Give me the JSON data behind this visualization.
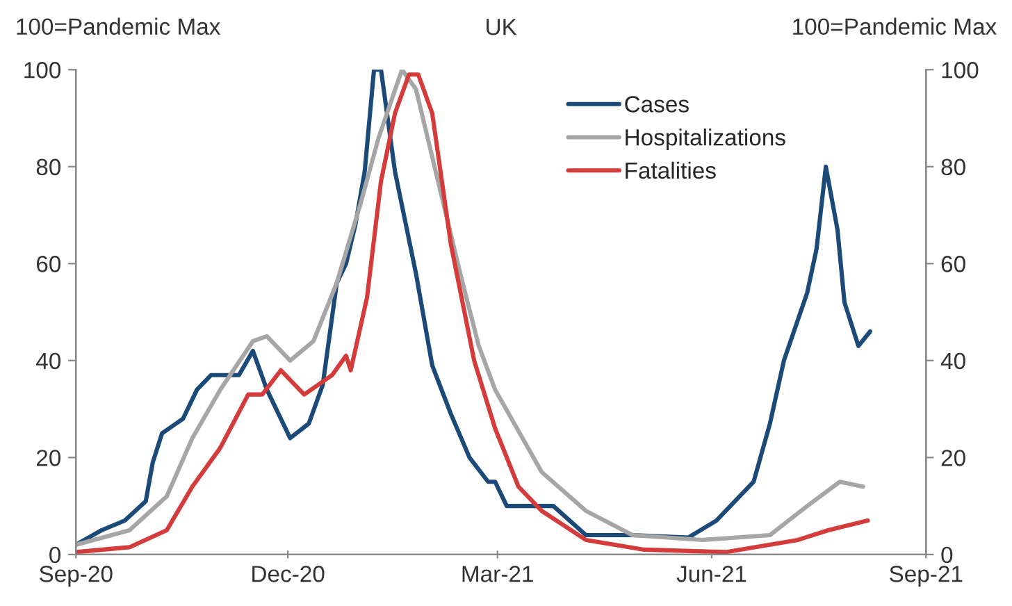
{
  "chart_data": {
    "type": "line",
    "title": "UK",
    "ylabel": "100=Pandemic Max",
    "y2label": "100=Pandemic Max",
    "xlim": [
      "2020-09-01",
      "2021-09-01"
    ],
    "xticks": [
      {
        "value": "2020-09-01",
        "label": "Sep-20"
      },
      {
        "value": "2020-12-01",
        "label": "Dec-20"
      },
      {
        "value": "2021-03-01",
        "label": "Mar-21"
      },
      {
        "value": "2021-06-01",
        "label": "Jun-21"
      },
      {
        "value": "2021-09-01",
        "label": "Sep-21"
      }
    ],
    "ylim": [
      0,
      100
    ],
    "yticks": [
      0,
      20,
      40,
      60,
      80,
      100
    ],
    "y2lim": [
      0,
      100
    ],
    "y2ticks": [
      0,
      20,
      40,
      60,
      80,
      100
    ],
    "grid": false,
    "legend": "top right",
    "marker": "none",
    "line_style": "solid",
    "series": [
      {
        "name": "Cases",
        "color": "#1b4a78",
        "x": [
          "2020-09-01",
          "2020-09-12",
          "2020-09-22",
          "2020-10-01",
          "2020-10-04",
          "2020-10-08",
          "2020-10-17",
          "2020-10-23",
          "2020-10-29",
          "2020-11-10",
          "2020-11-16",
          "2020-11-22",
          "2020-12-02",
          "2020-12-10",
          "2020-12-16",
          "2020-12-22",
          "2020-12-26",
          "2020-12-30",
          "2021-01-03",
          "2021-01-07",
          "2021-01-10",
          "2021-01-16",
          "2021-01-25",
          "2021-02-01",
          "2021-02-09",
          "2021-02-17",
          "2021-02-25",
          "2021-02-28",
          "2021-03-05",
          "2021-03-16",
          "2021-03-25",
          "2021-04-08",
          "2021-04-28",
          "2021-05-22",
          "2021-06-03",
          "2021-06-19",
          "2021-06-26",
          "2021-07-02",
          "2021-07-12",
          "2021-07-16",
          "2021-07-20",
          "2021-07-25",
          "2021-07-28",
          "2021-08-03",
          "2021-08-08"
        ],
        "values": [
          2,
          5,
          7,
          11,
          19,
          25,
          28,
          34,
          37,
          37,
          42,
          34,
          24,
          27,
          35,
          56,
          60,
          68,
          79,
          100,
          100,
          79,
          58,
          39,
          29,
          20,
          15,
          15,
          10,
          10,
          10,
          4,
          4,
          3.5,
          7,
          15,
          27,
          40,
          54,
          63,
          80,
          67,
          52,
          43,
          46
        ]
      },
      {
        "name": "Hospitalizations",
        "color": "#a6a6a6",
        "x": [
          "2020-09-01",
          "2020-09-24",
          "2020-10-10",
          "2020-10-21",
          "2020-11-02",
          "2020-11-16",
          "2020-11-22",
          "2020-12-02",
          "2020-12-12",
          "2020-12-22",
          "2021-01-01",
          "2021-01-09",
          "2021-01-19",
          "2021-01-25",
          "2021-02-01",
          "2021-02-13",
          "2021-02-21",
          "2021-02-28",
          "2021-03-20",
          "2021-04-08",
          "2021-04-28",
          "2021-05-28",
          "2021-06-26",
          "2021-07-12",
          "2021-07-26",
          "2021-08-05"
        ],
        "values": [
          2,
          5,
          12,
          24,
          34,
          44,
          45,
          40,
          44,
          56,
          72,
          86,
          100,
          96,
          82,
          58,
          43,
          34,
          17,
          9,
          4,
          3,
          4,
          10,
          15,
          14
        ]
      },
      {
        "name": "Fatalities",
        "color": "#d43c3c",
        "x": [
          "2020-09-01",
          "2020-09-24",
          "2020-10-10",
          "2020-10-21",
          "2020-11-02",
          "2020-11-14",
          "2020-11-20",
          "2020-11-28",
          "2020-12-08",
          "2020-12-20",
          "2020-12-26",
          "2020-12-28",
          "2021-01-04",
          "2021-01-10",
          "2021-01-16",
          "2021-01-22",
          "2021-01-26",
          "2021-02-01",
          "2021-02-09",
          "2021-02-19",
          "2021-02-28",
          "2021-03-10",
          "2021-03-20",
          "2021-04-08",
          "2021-05-03",
          "2021-06-07",
          "2021-07-08",
          "2021-07-21",
          "2021-08-07"
        ],
        "values": [
          0.5,
          1.5,
          5,
          14,
          22,
          33,
          33,
          38,
          33,
          37,
          41,
          38,
          53,
          77,
          91,
          99,
          99,
          91,
          64,
          40,
          26,
          14,
          9,
          3,
          1,
          0.5,
          3,
          5,
          7
        ]
      }
    ]
  }
}
